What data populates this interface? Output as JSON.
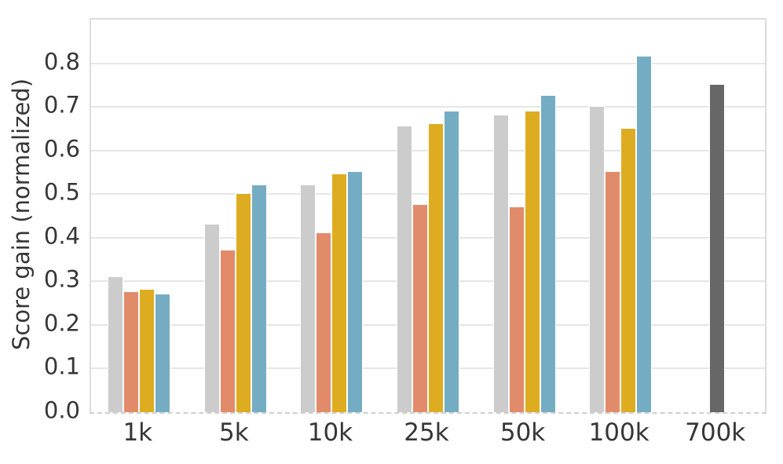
{
  "chart_data": {
    "type": "bar",
    "title": "",
    "xlabel": "",
    "ylabel": "Score gain (normalized)",
    "ylim": [
      0,
      0.9
    ],
    "yticks": [
      "0.0",
      "0.1",
      "0.2",
      "0.3",
      "0.4",
      "0.5",
      "0.6",
      "0.7",
      "0.8"
    ],
    "grid": true,
    "legend_position": "none",
    "categories": [
      "1k",
      "5k",
      "10k",
      "25k",
      "50k",
      "100k",
      "700k"
    ],
    "series": [
      {
        "name": "gray",
        "color": "#cccccc",
        "values": [
          0.31,
          0.43,
          0.52,
          0.655,
          0.68,
          0.7,
          null
        ]
      },
      {
        "name": "salmon",
        "color": "#e18b6b",
        "values": [
          0.275,
          0.37,
          0.41,
          0.475,
          0.47,
          0.55,
          null
        ]
      },
      {
        "name": "gold",
        "color": "#deac20",
        "values": [
          0.28,
          0.5,
          0.545,
          0.66,
          0.69,
          0.65,
          null
        ]
      },
      {
        "name": "blue",
        "color": "#74adc3",
        "values": [
          0.27,
          0.52,
          0.55,
          0.69,
          0.725,
          0.815,
          null
        ]
      },
      {
        "name": "dark-reference",
        "color": "#676767",
        "values": [
          null,
          null,
          null,
          null,
          null,
          null,
          0.75
        ]
      }
    ],
    "colors": {
      "grid": "#e6e6e6",
      "spine": "#dcdcdc",
      "text": "#363636",
      "background": "#ffffff"
    }
  }
}
